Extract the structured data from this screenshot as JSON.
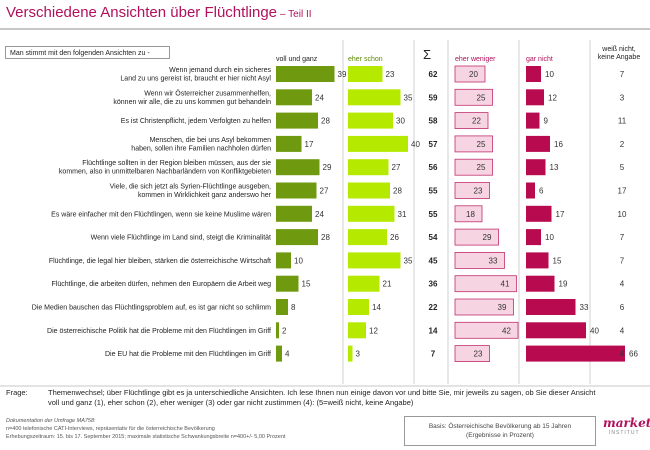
{
  "header": {
    "title": "Verschiedene Ansichten über Flüchtlinge",
    "subtitle": "– Teil II"
  },
  "question_label": "Man stimmt mit den folgenden Ansichten zu -",
  "columns": {
    "voll": "voll und ganz",
    "eher": "eher schon",
    "sum": "Σ",
    "eher_weniger": "eher weniger",
    "gar_nicht": "gar nicht",
    "weiss_nicht": "weiß nicht,\nkeine Angabe"
  },
  "colors": {
    "dark_green": "#6f9a10",
    "light_green": "#b5ea00",
    "light_pink": "#f7d4e2",
    "dark_pink": "#b80a4f",
    "title": "#b0105c"
  },
  "chart_data": {
    "type": "bar",
    "title": "Verschiedene Ansichten über Flüchtlinge – Teil II",
    "series_names": [
      "voll und ganz",
      "eher schon",
      "eher weniger",
      "gar nicht",
      "weiß nicht, keine Angabe"
    ],
    "items": [
      {
        "label": "Wenn jemand durch ein sicheres\nLand zu uns gereist ist, braucht er hier nicht Asyl",
        "voll": 39,
        "eher": 23,
        "sum": 62,
        "eher_weniger": 20,
        "gar_nicht": 10,
        "weiss_nicht": 7
      },
      {
        "label": "Wenn wir Österreicher zusammenhelfen,\nkönnen wir alle, die zu uns kommen gut behandeln",
        "voll": 24,
        "eher": 35,
        "sum": 59,
        "eher_weniger": 25,
        "gar_nicht": 12,
        "weiss_nicht": 3
      },
      {
        "label": "Es ist Christenpflicht, jedem Verfolgten zu helfen",
        "voll": 28,
        "eher": 30,
        "sum": 58,
        "eher_weniger": 22,
        "gar_nicht": 9,
        "weiss_nicht": 11
      },
      {
        "label": "Menschen, die bei uns Asyl bekommen\nhaben, sollen ihre Familien nachholen dürfen",
        "voll": 17,
        "eher": 40,
        "sum": 57,
        "eher_weniger": 25,
        "gar_nicht": 16,
        "weiss_nicht": 2
      },
      {
        "label": "Flüchtlinge sollten in der Region bleiben müssen, aus der sie\nkommen, also in unmittelbaren Nachbarländern von Konfliktgebieten",
        "voll": 29,
        "eher": 27,
        "sum": 56,
        "eher_weniger": 25,
        "gar_nicht": 13,
        "weiss_nicht": 5
      },
      {
        "label": "Viele, die sich jetzt als Syrien-Flüchtlinge ausgeben,\nkommen in Wirklichkeit ganz anderswo her",
        "voll": 27,
        "eher": 28,
        "sum": 55,
        "eher_weniger": 23,
        "gar_nicht": 6,
        "weiss_nicht": 17
      },
      {
        "label": "Es wäre einfacher mit den Flüchtlingen, wenn sie keine Muslime wären",
        "voll": 24,
        "eher": 31,
        "sum": 55,
        "eher_weniger": 18,
        "gar_nicht": 17,
        "weiss_nicht": 10
      },
      {
        "label": "Wenn viele Flüchtlinge im Land sind, steigt die Kriminalität",
        "voll": 28,
        "eher": 26,
        "sum": 54,
        "eher_weniger": 29,
        "gar_nicht": 10,
        "weiss_nicht": 7
      },
      {
        "label": "Flüchtlinge, die legal hier bleiben, stärken die österreichische Wirtschaft",
        "voll": 10,
        "eher": 35,
        "sum": 45,
        "eher_weniger": 33,
        "gar_nicht": 15,
        "weiss_nicht": 7
      },
      {
        "label": "Flüchtlinge, die arbeiten dürfen, nehmen den Europäern die Arbeit weg",
        "voll": 15,
        "eher": 21,
        "sum": 36,
        "eher_weniger": 41,
        "gar_nicht": 19,
        "weiss_nicht": 4
      },
      {
        "label": "Die Medien bauschen das Flüchtlingsproblem auf, es ist gar nicht so schlimm",
        "voll": 8,
        "eher": 14,
        "sum": 22,
        "eher_weniger": 39,
        "gar_nicht": 33,
        "weiss_nicht": 6
      },
      {
        "label": "Die österreichische Politik hat die Probleme mit den Flüchtlingen im Griff",
        "voll": 2,
        "eher": 12,
        "sum": 14,
        "eher_weniger": 42,
        "gar_nicht": 40,
        "weiss_nicht": 4
      },
      {
        "label": "Die EU hat die Probleme mit den Flüchtlingen im Griff",
        "voll": 4,
        "eher": 3,
        "sum": 7,
        "eher_weniger": 23,
        "gar_nicht": 66,
        "weiss_nicht": 4
      }
    ]
  },
  "footer": {
    "frage_label": "Frage:",
    "frage_text": "Themenwechsel; über Flüchtlinge gibt es ja unterschiedliche Ansichten. Ich lese Ihnen nun einige davon vor und bitte Sie, mir jeweils zu sagen, ob Sie dieser Ansicht\nvoll und ganz (1), eher schon (2), eher weniger (3) oder gar nicht zustimmen (4): (5=weiß nicht, keine Angabe)",
    "doc_title": "Dokumentation der Umfrage MA758:",
    "doc_line1": "n=400 telefonische CATI-Interviews, repräsentativ für die österreichische Bevölkerung",
    "doc_line2": "Erhebungszeitraum: 15. bis 17. September 2015; maximale statistische Schwankungsbreite n=400+/- 5,00 Prozent",
    "basis_line1": "Basis: Österreichische Bevölkerung ab 15 Jahren",
    "basis_line2": "(Ergebnisse in Prozent)",
    "logo_word": "market",
    "logo_sub": "INSTITUT"
  }
}
